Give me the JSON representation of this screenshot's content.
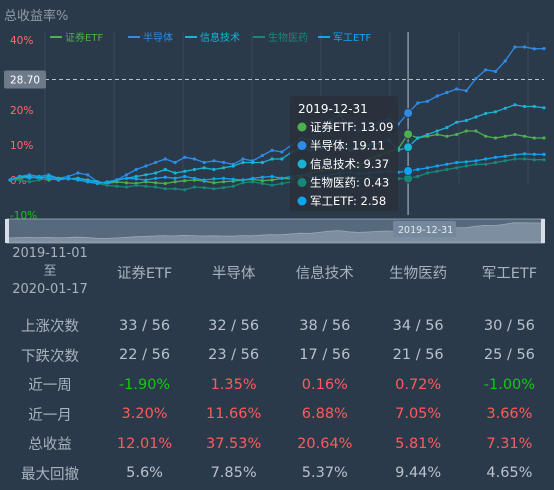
{
  "chart_data": {
    "type": "line",
    "title": "总收益率%",
    "ylim": [
      -10,
      40
    ],
    "yticks": [
      "40%",
      "30%",
      "20%",
      "10%",
      "0%",
      "-10%"
    ],
    "crosshair": {
      "y_value": 28.7,
      "y_label": "28.70",
      "x_label": "2019-12-31"
    },
    "tooltip": {
      "date": "2019-12-31",
      "rows": [
        {
          "name": "证券ETF",
          "value": "13.09",
          "color": "#4caf50"
        },
        {
          "name": "半导体",
          "value": "19.11",
          "color": "#2e8ce8"
        },
        {
          "name": "信息技术",
          "value": "9.37",
          "color": "#19b3d3"
        },
        {
          "name": "生物医药",
          "value": "0.43",
          "color": "#17877a"
        },
        {
          "name": "军工ETF",
          "value": "2.58",
          "color": "#0fa4f2"
        }
      ]
    },
    "series": [
      {
        "name": "证券ETF",
        "color": "#4caf50",
        "values": [
          0,
          0.5,
          1,
          0.5,
          0,
          0.5,
          0.3,
          0.5,
          0,
          -0.5,
          -1,
          -0.5,
          -0.8,
          -1,
          -0.5,
          -0.8,
          -1,
          -0.5,
          -0.2,
          0,
          -0.3,
          -0.8,
          -0.5,
          -0.3,
          0,
          0.2,
          -0.2,
          0,
          0.5,
          0.3,
          1,
          2,
          2.5,
          3,
          4,
          3.5,
          4,
          6,
          7,
          8,
          9,
          13.09,
          12,
          12.5,
          13,
          12.5,
          13,
          14,
          14,
          12.5,
          12,
          12.5,
          13,
          12.5,
          12,
          12.01
        ]
      },
      {
        "name": "半导体",
        "color": "#2e8ce8",
        "values": [
          0,
          1,
          1.5,
          1,
          1.5,
          0.5,
          1,
          2,
          1.5,
          -0.5,
          -1,
          0,
          1.5,
          3,
          4,
          5,
          6,
          5,
          6.5,
          6,
          5,
          5.5,
          5,
          4.5,
          6,
          5.5,
          7,
          8.5,
          8,
          10,
          12,
          11.5,
          14,
          17,
          18.5,
          15.5,
          14,
          15,
          16.5,
          17.5,
          16,
          19.11,
          22,
          22.5,
          24,
          25,
          26,
          25.5,
          29,
          31.5,
          31,
          34,
          38,
          38,
          37.5,
          37.53
        ]
      },
      {
        "name": "信息技术",
        "color": "#19b3d3",
        "values": [
          0,
          1,
          1,
          0.5,
          1,
          0.5,
          0.3,
          0.5,
          0,
          -0.5,
          -1,
          0,
          0.5,
          1,
          1.5,
          2,
          3,
          2,
          2.5,
          3,
          3.5,
          3,
          3.5,
          4,
          5,
          5,
          5,
          6,
          6,
          8,
          9,
          8.5,
          9,
          11,
          11.5,
          8.5,
          9,
          10,
          10.5,
          11.5,
          8.5,
          9.37,
          12,
          13,
          14,
          15,
          16.5,
          17,
          18,
          19,
          19.5,
          20.5,
          21.5,
          21,
          21,
          20.64
        ]
      },
      {
        "name": "生物医药",
        "color": "#17877a",
        "values": [
          0,
          0,
          -0.5,
          0,
          0.5,
          0,
          0.5,
          0,
          -0.5,
          -1,
          -1.5,
          -1.8,
          -2,
          -1.5,
          -1.8,
          -2,
          -2.5,
          -2.5,
          -2.8,
          -2,
          -2.2,
          -2.5,
          -2.2,
          -1.8,
          -0.8,
          -0.5,
          -1,
          -1.5,
          -1,
          -0.5,
          -0.8,
          -0.5,
          -0.2,
          0.5,
          1,
          1,
          0.5,
          0.8,
          0.5,
          0.3,
          0.4,
          0.43,
          1,
          2,
          2.5,
          3,
          3.5,
          4,
          4.5,
          4.5,
          5,
          5.5,
          6,
          6,
          5.8,
          5.81
        ]
      },
      {
        "name": "军工ETF",
        "color": "#0fa4f2",
        "values": [
          0,
          1,
          0.5,
          1,
          0.5,
          0,
          0.5,
          0,
          -0.5,
          -1,
          -0.5,
          0,
          0.5,
          0.3,
          0,
          0.5,
          0.8,
          0.5,
          1,
          0.5,
          0,
          0.3,
          0.5,
          0.2,
          0,
          0.5,
          0.8,
          1,
          0.5,
          1,
          1.5,
          1,
          1.2,
          1.5,
          2,
          2.2,
          1.8,
          2,
          2.3,
          2.5,
          2.2,
          2.58,
          3,
          3.5,
          4,
          4.5,
          5,
          5.2,
          5.5,
          6,
          6.5,
          6.8,
          7.2,
          7.5,
          7.3,
          7.31
        ]
      }
    ]
  },
  "stats": {
    "range_start": "2019-11-01",
    "range_mid": "至",
    "range_end": "2020-01-17",
    "headers": [
      "证券ETF",
      "半导体",
      "信息技术",
      "生物医药",
      "军工ETF"
    ],
    "rows": [
      {
        "label": "上涨次数",
        "values": [
          "33 / 56",
          "32 / 56",
          "38 / 56",
          "34 / 56",
          "30 / 56"
        ],
        "signs": [
          "",
          "",
          "",
          "",
          ""
        ]
      },
      {
        "label": "下跌次数",
        "values": [
          "22 / 56",
          "23 / 56",
          "17 / 56",
          "21 / 56",
          "25 / 56"
        ],
        "signs": [
          "",
          "",
          "",
          "",
          ""
        ]
      },
      {
        "label": "近一周",
        "values": [
          "-1.90%",
          "1.35%",
          "0.16%",
          "0.72%",
          "-1.00%"
        ],
        "signs": [
          "neg",
          "pos",
          "pos",
          "pos",
          "neg"
        ]
      },
      {
        "label": "近一月",
        "values": [
          "3.20%",
          "11.66%",
          "6.88%",
          "7.05%",
          "3.66%"
        ],
        "signs": [
          "pos",
          "pos",
          "pos",
          "pos",
          "pos"
        ]
      },
      {
        "label": "总收益",
        "values": [
          "12.01%",
          "37.53%",
          "20.64%",
          "5.81%",
          "7.31%"
        ],
        "signs": [
          "pos",
          "pos",
          "pos",
          "pos",
          "pos"
        ]
      },
      {
        "label": "最大回撤",
        "values": [
          "5.6%",
          "7.85%",
          "5.37%",
          "9.44%",
          "4.65%"
        ],
        "signs": [
          "",
          "",
          "",
          "",
          ""
        ]
      }
    ]
  }
}
